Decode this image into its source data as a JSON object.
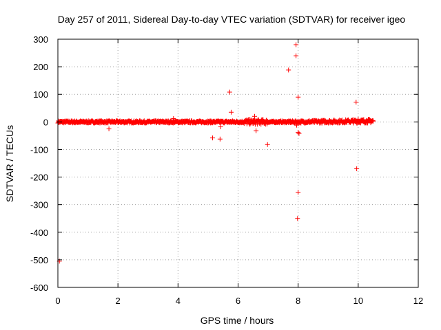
{
  "chart_data": {
    "type": "scatter",
    "title": "Day 257 of 2011, Sidereal Day-to-day VTEC variation (SDTVAR) for receiver igeo",
    "xlabel": "GPS time / hours",
    "ylabel": "SDTVAR / TECUs",
    "xlim": [
      0,
      12
    ],
    "ylim": [
      -600,
      300
    ],
    "xticks": [
      0,
      2,
      4,
      6,
      8,
      10,
      12
    ],
    "yticks": [
      -600,
      -500,
      -400,
      -300,
      -200,
      -100,
      0,
      100,
      200,
      300
    ],
    "xtick_labels": [
      "0",
      "2",
      "4",
      "6",
      "8",
      "10",
      "12"
    ],
    "ytick_labels": [
      "-600",
      "-500",
      "-400",
      "-300",
      "-200",
      "-100",
      "0",
      "100",
      "200",
      "300"
    ],
    "grid": true,
    "marker": "+",
    "colors": {
      "series": "#ff0000",
      "grid": "#a0a0a0",
      "axis": "#000000"
    },
    "dense_band": {
      "x_start": 0.0,
      "x_end": 10.5,
      "y_center": 0,
      "y_spread": 4
    },
    "outliers": [
      {
        "x": 0.05,
        "y": -505
      },
      {
        "x": 1.7,
        "y": -25
      },
      {
        "x": 3.85,
        "y": 12
      },
      {
        "x": 5.15,
        "y": -58
      },
      {
        "x": 5.4,
        "y": -62
      },
      {
        "x": 5.42,
        "y": -18
      },
      {
        "x": 5.72,
        "y": 108
      },
      {
        "x": 5.77,
        "y": 35
      },
      {
        "x": 6.55,
        "y": 20
      },
      {
        "x": 6.6,
        "y": -32
      },
      {
        "x": 6.98,
        "y": -82
      },
      {
        "x": 7.68,
        "y": 188
      },
      {
        "x": 7.93,
        "y": 280
      },
      {
        "x": 7.93,
        "y": 240
      },
      {
        "x": 7.95,
        "y": -12
      },
      {
        "x": 7.98,
        "y": -350
      },
      {
        "x": 8.0,
        "y": -255
      },
      {
        "x": 8.0,
        "y": 90
      },
      {
        "x": 8.0,
        "y": -38
      },
      {
        "x": 8.03,
        "y": -42
      },
      {
        "x": 9.93,
        "y": 72
      },
      {
        "x": 9.95,
        "y": -170
      },
      {
        "x": 10.0,
        "y": 10
      }
    ]
  }
}
